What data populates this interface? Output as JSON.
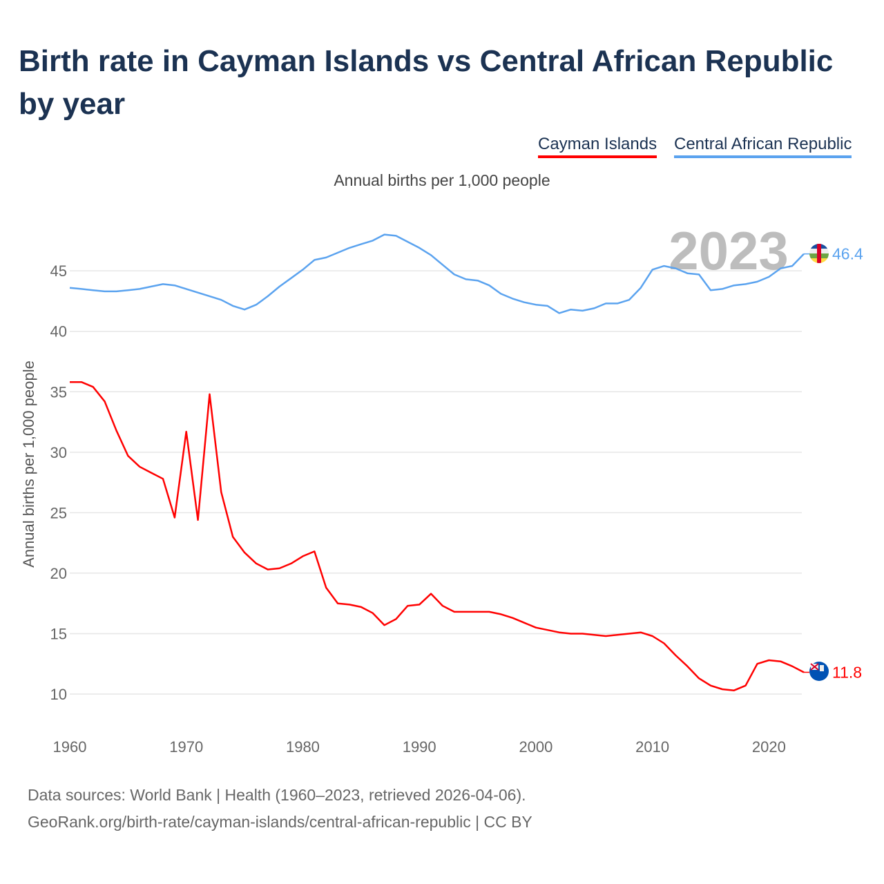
{
  "title": "Birth rate in Cayman Islands vs Central African Republic by year",
  "legend": [
    "Cayman Islands",
    "Central African Republic"
  ],
  "subtitle": "Annual births per 1,000 people",
  "year_watermark": "2023",
  "source_line1": "Data sources: World Bank | Health (1960–2023, retrieved 2026-04-06).",
  "source_line2": "GeoRank.org/birth-rate/cayman-islands/central-african-republic | CC BY",
  "chart_data": {
    "type": "line",
    "title": "Birth rate in Cayman Islands vs Central African Republic by year",
    "xlabel": "",
    "ylabel": "Annual births per 1,000 people",
    "xlim": [
      1960,
      2023
    ],
    "ylim": [
      7.6,
      49
    ],
    "yticks": [
      10,
      15,
      20,
      25,
      30,
      35,
      40,
      45
    ],
    "xticks": [
      1960,
      1970,
      1980,
      1990,
      2000,
      2010,
      2020
    ],
    "grid": true,
    "legend_position": "top-right",
    "x": [
      1960,
      1961,
      1962,
      1963,
      1964,
      1965,
      1966,
      1967,
      1968,
      1969,
      1970,
      1971,
      1972,
      1973,
      1974,
      1975,
      1976,
      1977,
      1978,
      1979,
      1980,
      1981,
      1982,
      1983,
      1984,
      1985,
      1986,
      1987,
      1988,
      1989,
      1990,
      1991,
      1992,
      1993,
      1994,
      1995,
      1996,
      1997,
      1998,
      1999,
      2000,
      2001,
      2002,
      2003,
      2004,
      2005,
      2006,
      2007,
      2008,
      2009,
      2010,
      2011,
      2012,
      2013,
      2014,
      2015,
      2016,
      2017,
      2018,
      2019,
      2020,
      2021,
      2022,
      2023
    ],
    "series": [
      {
        "name": "Cayman Islands",
        "color": "#ff0000",
        "end_label": "11.8",
        "values": [
          35.8,
          35.8,
          35.4,
          34.2,
          31.8,
          29.7,
          28.8,
          28.3,
          27.8,
          24.6,
          31.7,
          24.4,
          34.8,
          26.7,
          23.0,
          21.7,
          20.8,
          20.3,
          20.4,
          20.8,
          21.4,
          21.8,
          18.8,
          17.5,
          17.4,
          17.2,
          16.7,
          15.7,
          16.2,
          17.3,
          17.4,
          18.3,
          17.3,
          16.8,
          16.8,
          16.8,
          16.8,
          16.6,
          16.3,
          15.9,
          15.5,
          15.3,
          15.1,
          15.0,
          15.0,
          14.9,
          14.8,
          14.9,
          15.0,
          15.1,
          14.8,
          14.2,
          13.2,
          12.3,
          11.3,
          10.7,
          10.4,
          10.3,
          10.7,
          12.5,
          12.8,
          12.7,
          12.3,
          11.8
        ]
      },
      {
        "name": "Central African Republic",
        "color": "#5ba3ef",
        "end_label": "46.4",
        "values": [
          43.6,
          43.5,
          43.4,
          43.3,
          43.3,
          43.4,
          43.5,
          43.7,
          43.9,
          43.8,
          43.5,
          43.2,
          42.9,
          42.6,
          42.1,
          41.8,
          42.2,
          42.9,
          43.7,
          44.4,
          45.1,
          45.9,
          46.1,
          46.5,
          46.9,
          47.2,
          47.5,
          48.0,
          47.9,
          47.4,
          46.9,
          46.3,
          45.5,
          44.7,
          44.3,
          44.2,
          43.8,
          43.1,
          42.7,
          42.4,
          42.2,
          42.1,
          41.5,
          41.8,
          41.7,
          41.9,
          42.3,
          42.3,
          42.6,
          43.6,
          45.1,
          45.4,
          45.2,
          44.8,
          44.7,
          43.4,
          43.5,
          43.8,
          43.9,
          44.1,
          44.5,
          45.2,
          45.4,
          46.4
        ]
      }
    ]
  }
}
